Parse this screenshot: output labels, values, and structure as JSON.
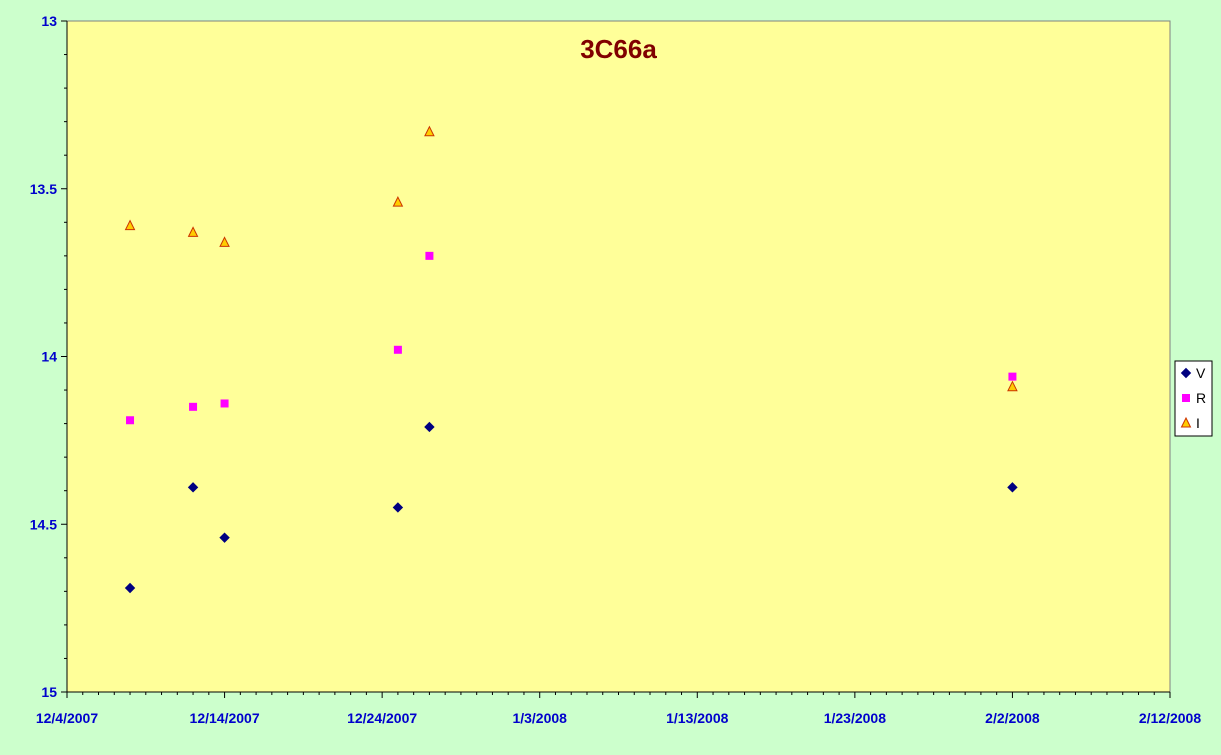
{
  "chart_data": {
    "type": "scatter",
    "title": "3C66a",
    "xlabel": "",
    "ylabel": "",
    "x_axis_type": "date",
    "xlim": [
      "2007-12-04",
      "2008-02-12"
    ],
    "ylim": [
      13,
      15
    ],
    "y_reversed": true,
    "y_ticks": [
      "13",
      "13.5",
      "14",
      "14.5",
      "15"
    ],
    "x_ticks": [
      {
        "date": "2007-12-04",
        "label": "12/4/2007"
      },
      {
        "date": "2007-12-14",
        "label": "12/14/2007"
      },
      {
        "date": "2007-12-24",
        "label": "12/24/2007"
      },
      {
        "date": "2008-01-03",
        "label": "1/3/2008"
      },
      {
        "date": "2008-01-13",
        "label": "1/13/2008"
      },
      {
        "date": "2008-01-23",
        "label": "1/23/2008"
      },
      {
        "date": "2008-02-02",
        "label": "2/2/2008"
      },
      {
        "date": "2008-02-12",
        "label": "2/12/2008"
      }
    ],
    "grid": false,
    "legend_position": "right",
    "colors": {
      "plot_background": "#ffff99",
      "chart_background": "#ccffcc",
      "title": "#800000",
      "tick_labels": "#0000cc"
    },
    "series": [
      {
        "name": "V",
        "marker": "diamond",
        "color": "#000080",
        "points": [
          {
            "x": "2007-12-08",
            "y": 14.69
          },
          {
            "x": "2007-12-12",
            "y": 14.39
          },
          {
            "x": "2007-12-14",
            "y": 14.54
          },
          {
            "x": "2007-12-25",
            "y": 14.45
          },
          {
            "x": "2007-12-27",
            "y": 14.21
          },
          {
            "x": "2008-02-02",
            "y": 14.39
          }
        ]
      },
      {
        "name": "R",
        "marker": "square",
        "color": "#ff00ff",
        "points": [
          {
            "x": "2007-12-08",
            "y": 14.19
          },
          {
            "x": "2007-12-12",
            "y": 14.15
          },
          {
            "x": "2007-12-14",
            "y": 14.14
          },
          {
            "x": "2007-12-25",
            "y": 13.98
          },
          {
            "x": "2007-12-27",
            "y": 13.7
          },
          {
            "x": "2008-02-02",
            "y": 14.06
          }
        ]
      },
      {
        "name": "I",
        "marker": "triangle",
        "color": "#ffcc00",
        "stroke": "#cc3300",
        "points": [
          {
            "x": "2007-12-08",
            "y": 13.61
          },
          {
            "x": "2007-12-12",
            "y": 13.63
          },
          {
            "x": "2007-12-14",
            "y": 13.66
          },
          {
            "x": "2007-12-25",
            "y": 13.54
          },
          {
            "x": "2007-12-27",
            "y": 13.33
          },
          {
            "x": "2008-02-02",
            "y": 14.09
          }
        ]
      }
    ]
  }
}
